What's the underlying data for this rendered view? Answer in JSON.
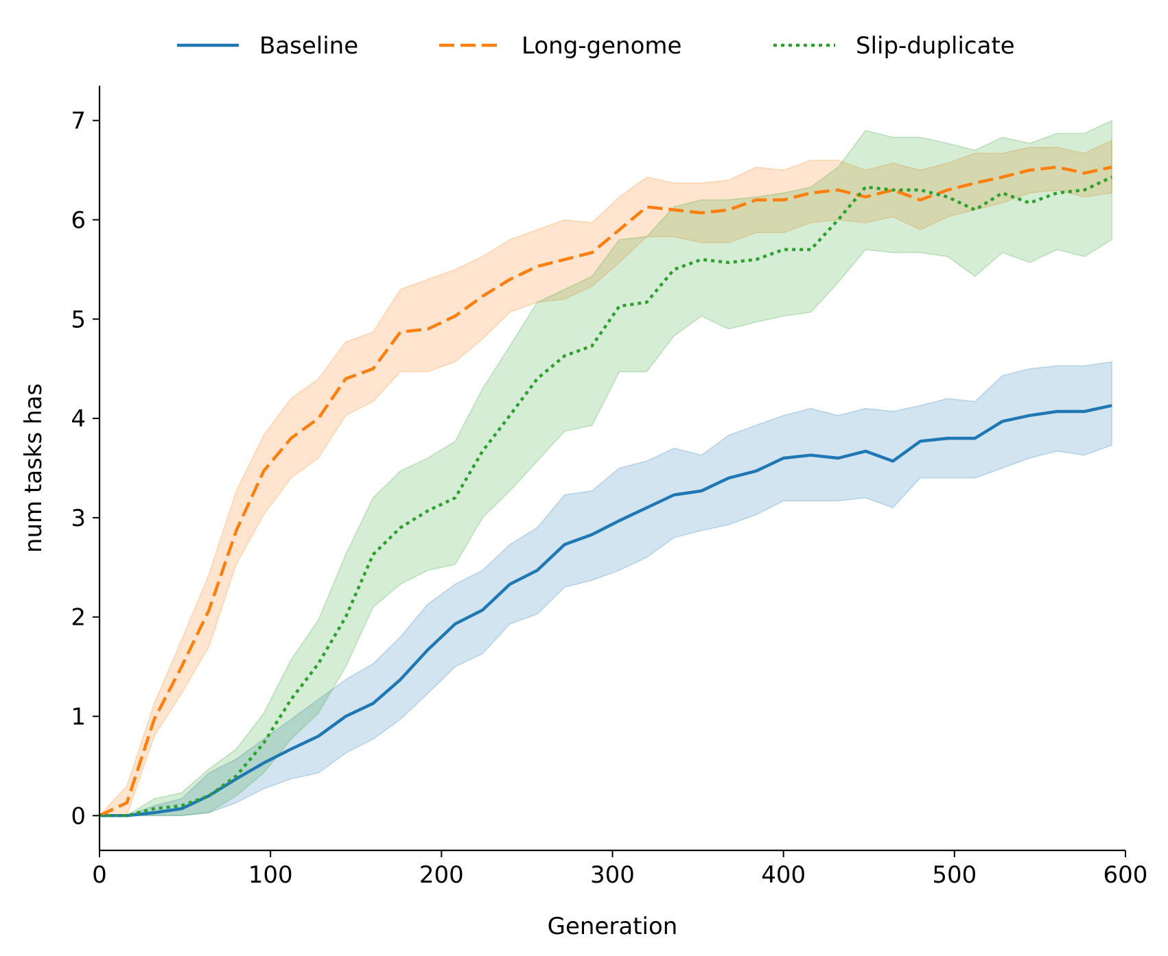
{
  "chart_data": {
    "type": "line",
    "title": "",
    "xlabel": "Generation",
    "ylabel": "num tasks has",
    "xlim": [
      0,
      600
    ],
    "ylim": [
      -0.35,
      7.35
    ],
    "xticks": [
      0,
      100,
      200,
      300,
      400,
      500,
      600
    ],
    "yticks": [
      0,
      1,
      2,
      3,
      4,
      5,
      6,
      7
    ],
    "grid": false,
    "legend_position": "top-center",
    "x": [
      0,
      16,
      32,
      48,
      64,
      80,
      96,
      112,
      128,
      144,
      160,
      176,
      192,
      208,
      224,
      240,
      256,
      272,
      288,
      304,
      320,
      336,
      352,
      368,
      384,
      400,
      416,
      432,
      448,
      464,
      480,
      496,
      512,
      528,
      544,
      560,
      576,
      592
    ],
    "series": [
      {
        "name": "Baseline",
        "color": "#1f77b4",
        "linestyle": "solid",
        "values": [
          0,
          0,
          0.03,
          0.07,
          0.2,
          0.37,
          0.53,
          0.67,
          0.8,
          1.0,
          1.13,
          1.37,
          1.67,
          1.93,
          2.07,
          2.33,
          2.47,
          2.73,
          2.83,
          2.97,
          3.1,
          3.23,
          3.27,
          3.4,
          3.47,
          3.6,
          3.63,
          3.6,
          3.67,
          3.57,
          3.77,
          3.8,
          3.8,
          3.97,
          4.03,
          4.07,
          4.07,
          4.13
        ],
        "lower": [
          0,
          0,
          0,
          0,
          0.03,
          0.13,
          0.27,
          0.37,
          0.43,
          0.63,
          0.77,
          0.97,
          1.23,
          1.5,
          1.63,
          1.93,
          2.03,
          2.3,
          2.37,
          2.47,
          2.6,
          2.8,
          2.87,
          2.93,
          3.03,
          3.17,
          3.17,
          3.17,
          3.2,
          3.1,
          3.4,
          3.4,
          3.4,
          3.5,
          3.6,
          3.67,
          3.63,
          3.73
        ],
        "upper": [
          0,
          0,
          0.1,
          0.17,
          0.43,
          0.57,
          0.77,
          0.97,
          1.17,
          1.37,
          1.53,
          1.8,
          2.13,
          2.33,
          2.47,
          2.73,
          2.9,
          3.23,
          3.27,
          3.5,
          3.57,
          3.7,
          3.63,
          3.83,
          3.93,
          4.03,
          4.1,
          4.03,
          4.1,
          4.07,
          4.13,
          4.2,
          4.17,
          4.43,
          4.5,
          4.53,
          4.53,
          4.57
        ]
      },
      {
        "name": "Long-genome",
        "color": "#ff7f0e",
        "linestyle": "dashed",
        "values": [
          0,
          0.13,
          0.97,
          1.5,
          2.07,
          2.87,
          3.47,
          3.8,
          4.0,
          4.4,
          4.5,
          4.87,
          4.9,
          5.03,
          5.23,
          5.4,
          5.53,
          5.6,
          5.67,
          5.9,
          6.13,
          6.1,
          6.07,
          6.1,
          6.2,
          6.2,
          6.27,
          6.3,
          6.23,
          6.3,
          6.2,
          6.3,
          6.37,
          6.43,
          6.5,
          6.53,
          6.47,
          6.53
        ],
        "lower": [
          0,
          0,
          0.8,
          1.23,
          1.7,
          2.53,
          3.03,
          3.4,
          3.6,
          4.03,
          4.17,
          4.47,
          4.47,
          4.57,
          4.8,
          5.07,
          5.17,
          5.2,
          5.33,
          5.57,
          5.83,
          5.83,
          5.77,
          5.77,
          5.87,
          5.87,
          5.97,
          6.0,
          5.97,
          6.03,
          5.9,
          6.03,
          6.1,
          6.17,
          6.27,
          6.3,
          6.23,
          6.27
        ],
        "upper": [
          0,
          0.3,
          1.13,
          1.77,
          2.43,
          3.27,
          3.83,
          4.2,
          4.4,
          4.77,
          4.87,
          5.3,
          5.4,
          5.5,
          5.63,
          5.8,
          5.9,
          6.0,
          5.97,
          6.23,
          6.43,
          6.37,
          6.37,
          6.4,
          6.53,
          6.5,
          6.6,
          6.6,
          6.5,
          6.57,
          6.5,
          6.57,
          6.67,
          6.67,
          6.73,
          6.73,
          6.67,
          6.8
        ]
      },
      {
        "name": "Slip-duplicate",
        "color": "#2ca02c",
        "linestyle": "dotted",
        "values": [
          0,
          0,
          0.07,
          0.1,
          0.2,
          0.4,
          0.73,
          1.17,
          1.53,
          2.0,
          2.63,
          2.9,
          3.07,
          3.2,
          3.67,
          4.03,
          4.4,
          4.63,
          4.73,
          5.13,
          5.17,
          5.5,
          5.6,
          5.57,
          5.6,
          5.7,
          5.7,
          6.0,
          6.33,
          6.3,
          6.3,
          6.23,
          6.1,
          6.27,
          6.17,
          6.27,
          6.3,
          6.43
        ],
        "lower": [
          0,
          0,
          0,
          0,
          0.03,
          0.2,
          0.43,
          0.77,
          1.03,
          1.5,
          2.1,
          2.33,
          2.47,
          2.53,
          3.0,
          3.27,
          3.57,
          3.87,
          3.93,
          4.47,
          4.47,
          4.83,
          5.03,
          4.9,
          4.97,
          5.03,
          5.07,
          5.37,
          5.7,
          5.67,
          5.67,
          5.63,
          5.43,
          5.67,
          5.57,
          5.7,
          5.63,
          5.8
        ],
        "upper": [
          0,
          0,
          0.17,
          0.23,
          0.47,
          0.67,
          1.03,
          1.57,
          1.97,
          2.63,
          3.2,
          3.47,
          3.6,
          3.77,
          4.3,
          4.73,
          5.17,
          5.3,
          5.43,
          5.8,
          5.83,
          6.13,
          6.2,
          6.2,
          6.23,
          6.27,
          6.33,
          6.53,
          6.9,
          6.83,
          6.83,
          6.77,
          6.7,
          6.83,
          6.77,
          6.87,
          6.87,
          7.0
        ]
      }
    ]
  }
}
